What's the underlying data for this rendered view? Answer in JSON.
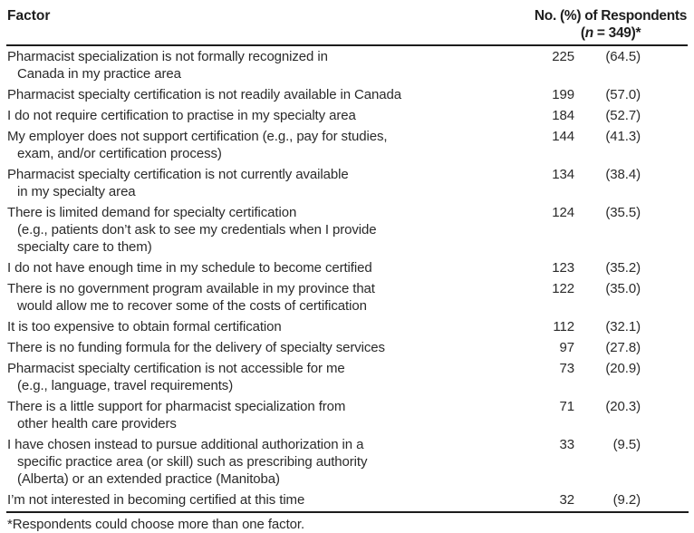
{
  "page": {
    "background_color": "#ffffff",
    "text_color": "#2a2a2a",
    "rule_color": "#1c1c1c"
  },
  "table": {
    "header": {
      "factor_label": "Factor",
      "respondents_label": "No. (%) of Respondents",
      "respondents_sub_open": "(",
      "respondents_sub_n": "n",
      "respondents_sub_rest": " = 349)*"
    },
    "rows": [
      {
        "factor_lines": [
          "Pharmacist specialization is not formally recognized in",
          "Canada in my practice area"
        ],
        "n": "225",
        "pct": "(64.5)"
      },
      {
        "factor_lines": [
          "Pharmacist specialty certification is not readily available in Canada"
        ],
        "n": "199",
        "pct": "(57.0)"
      },
      {
        "factor_lines": [
          "I do not require certification to practise in my specialty area"
        ],
        "n": "184",
        "pct": "(52.7)"
      },
      {
        "factor_lines": [
          "My employer does not support certification (e.g., pay for studies,",
          "exam, and/or certification process)"
        ],
        "n": "144",
        "pct": "(41.3)"
      },
      {
        "factor_lines": [
          "Pharmacist specialty certification is not currently available",
          "in my specialty area"
        ],
        "n": "134",
        "pct": "(38.4)"
      },
      {
        "factor_lines": [
          "There is limited demand for specialty certification",
          "(e.g., patients don’t ask to see my credentials when I provide",
          "specialty care to them)"
        ],
        "n": "124",
        "pct": "(35.5)"
      },
      {
        "factor_lines": [
          "I do not have enough time in my schedule to become certified"
        ],
        "n": "123",
        "pct": "(35.2)"
      },
      {
        "factor_lines": [
          "There is no government program available in my province that",
          "would allow me to recover some of the costs of certification"
        ],
        "n": "122",
        "pct": "(35.0)"
      },
      {
        "factor_lines": [
          "It is too expensive to obtain formal certification"
        ],
        "n": "112",
        "pct": "(32.1)"
      },
      {
        "factor_lines": [
          "There is no funding formula for the delivery of specialty services"
        ],
        "n": "97",
        "pct": "(27.8)"
      },
      {
        "factor_lines": [
          "Pharmacist specialty certification is not accessible for me",
          "(e.g., language, travel requirements)"
        ],
        "n": "73",
        "pct": "(20.9)"
      },
      {
        "factor_lines": [
          "There is a little support for pharmacist specialization from",
          "other health care providers"
        ],
        "n": "71",
        "pct": "(20.3)"
      },
      {
        "factor_lines": [
          "I have chosen instead to pursue additional authorization in a",
          "specific practice area (or skill) such as prescribing authority",
          "(Alberta) or an extended practice (Manitoba)"
        ],
        "n": "33",
        "pct": "(9.5)"
      },
      {
        "factor_lines": [
          "I’m not interested in becoming certified at this time"
        ],
        "n": "32",
        "pct": "(9.2)"
      }
    ],
    "footnote": "*Respondents could choose more than one factor."
  }
}
